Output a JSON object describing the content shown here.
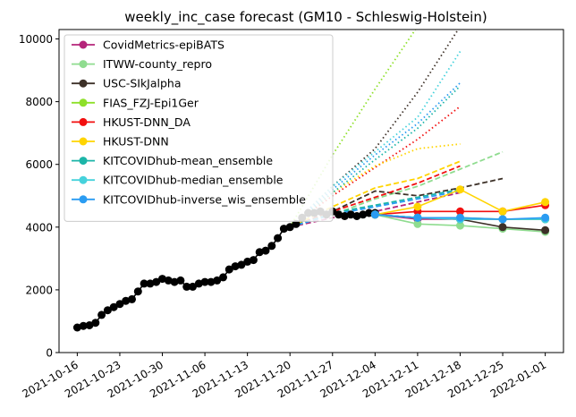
{
  "chart_data": {
    "type": "line",
    "title": "weekly_inc_case forecast (GM10 - Schleswig-Holstein)",
    "xlabel": "",
    "ylabel": "",
    "ylim": [
      0,
      10300
    ],
    "xlim": [
      "2021-10-13",
      "2022-01-04"
    ],
    "grid": false,
    "legend_position": "top-left",
    "yticks": [
      0,
      2000,
      4000,
      6000,
      8000,
      10000
    ],
    "xticks": [
      "2021-10-16",
      "2021-10-23",
      "2021-10-30",
      "2021-11-06",
      "2021-11-13",
      "2021-11-20",
      "2021-11-27",
      "2021-12-04",
      "2021-12-11",
      "2021-12-18",
      "2021-12-25",
      "2022-01-01"
    ],
    "truth": {
      "color": "#000000",
      "x": [
        "2021-10-16",
        "2021-10-17",
        "2021-10-18",
        "2021-10-19",
        "2021-10-20",
        "2021-10-21",
        "2021-10-22",
        "2021-10-23",
        "2021-10-24",
        "2021-10-25",
        "2021-10-26",
        "2021-10-27",
        "2021-10-28",
        "2021-10-29",
        "2021-10-30",
        "2021-10-31",
        "2021-11-01",
        "2021-11-02",
        "2021-11-03",
        "2021-11-04",
        "2021-11-05",
        "2021-11-06",
        "2021-11-07",
        "2021-11-08",
        "2021-11-09",
        "2021-11-10",
        "2021-11-11",
        "2021-11-12",
        "2021-11-13",
        "2021-11-14",
        "2021-11-15",
        "2021-11-16",
        "2021-11-17",
        "2021-11-18",
        "2021-11-19",
        "2021-11-20",
        "2021-11-21",
        "2021-11-22",
        "2021-11-23",
        "2021-11-24",
        "2021-11-25",
        "2021-11-26",
        "2021-11-27",
        "2021-11-28",
        "2021-11-29",
        "2021-11-30",
        "2021-12-01",
        "2021-12-02",
        "2021-12-03",
        "2021-12-04"
      ],
      "values": [
        800,
        850,
        870,
        950,
        1200,
        1350,
        1450,
        1550,
        1650,
        1700,
        1950,
        2200,
        2200,
        2250,
        2350,
        2300,
        2250,
        2300,
        2100,
        2100,
        2200,
        2250,
        2250,
        2300,
        2400,
        2650,
        2750,
        2800,
        2900,
        2950,
        3200,
        3250,
        3400,
        3650,
        3950,
        4000,
        4100,
        4300,
        4450,
        4450,
        4500,
        4400,
        4500,
        4400,
        4350,
        4400,
        4350,
        4400,
        4450,
        4450
      ]
    },
    "forecast_x": [
      "2021-12-04",
      "2021-12-11",
      "2021-12-18",
      "2021-12-25",
      "2022-01-01"
    ],
    "series": [
      {
        "name": "CovidMetrics-epiBATS",
        "color": "#b5247a",
        "values": [
          4400,
          4250,
          4250,
          4250,
          4250
        ]
      },
      {
        "name": "ITWW-county_repro",
        "color": "#8fdc8f",
        "values": [
          4400,
          4100,
          4050,
          3950,
          3850
        ]
      },
      {
        "name": "USC-SIkJalpha",
        "color": "#3d3128",
        "values": [
          4400,
          4300,
          4250,
          4000,
          3900
        ]
      },
      {
        "name": "FIAS_FZJ-Epi1Ger",
        "color": "#8ee02a",
        "values": [
          4400,
          4300,
          4300,
          4250,
          4250
        ]
      },
      {
        "name": "HKUST-DNN_DA",
        "color": "#f20f0f",
        "values": [
          4400,
          4500,
          4500,
          4500,
          4700
        ]
      },
      {
        "name": "HKUST-DNN",
        "color": "#ffd400",
        "values": [
          4400,
          4650,
          5200,
          4500,
          4800
        ]
      },
      {
        "name": "KITCOVIDhub-mean_ensemble",
        "color": "#1cb5a8",
        "values": [
          4400,
          4300,
          4250,
          4250,
          4250
        ]
      },
      {
        "name": "KITCOVIDhub-median_ensemble",
        "color": "#46d2dc",
        "values": [
          4400,
          4300,
          4250,
          4250,
          4250
        ]
      },
      {
        "name": "KITCOVIDhub-inverse_wis_ensemble",
        "color": "#2a9cf2",
        "values": [
          4400,
          4300,
          4300,
          4250,
          4300
        ]
      }
    ],
    "forecast_ranges": [
      {
        "series": "CovidMetrics-epiBATS",
        "color": "#b5247a",
        "style": "dashed",
        "x": [
          "2021-11-20",
          "2021-11-27",
          "2021-12-04",
          "2021-12-11",
          "2021-12-18"
        ],
        "values": [
          4000,
          4300,
          4500,
          4800,
          5100
        ]
      },
      {
        "series": "ITWW-county_repro",
        "color": "#8fdc8f",
        "style": "dashed",
        "x": [
          "2021-11-20",
          "2021-11-27",
          "2021-12-04",
          "2021-12-11",
          "2021-12-18",
          "2021-12-25"
        ],
        "values": [
          4000,
          4400,
          4900,
          5300,
          5850,
          6400
        ]
      },
      {
        "series": "USC-SIkJalpha",
        "color": "#3d3128",
        "style": "dashed",
        "x": [
          "2021-11-20",
          "2021-11-27",
          "2021-12-04",
          "2021-12-11",
          "2021-12-18",
          "2021-12-25"
        ],
        "values": [
          4000,
          4500,
          5150,
          5000,
          5250,
          5550
        ]
      },
      {
        "series": "USC-SIkJalpha",
        "color": "#3d3128",
        "style": "dotted",
        "x": [
          "2021-11-20",
          "2021-11-27",
          "2021-12-04",
          "2021-12-11",
          "2021-12-18"
        ],
        "values": [
          4000,
          5300,
          6500,
          8300,
          10400
        ]
      },
      {
        "series": "FIAS_FZJ-Epi1Ger",
        "color": "#8ee02a",
        "style": "dotted",
        "x": [
          "2021-11-20",
          "2021-11-27",
          "2021-12-04",
          "2021-12-11"
        ],
        "values": [
          4000,
          6300,
          8400,
          10400
        ]
      },
      {
        "series": "HKUST-DNN_DA",
        "color": "#f20f0f",
        "style": "dashed",
        "x": [
          "2021-11-20",
          "2021-11-27",
          "2021-12-04",
          "2021-12-11",
          "2021-12-18"
        ],
        "values": [
          4000,
          4500,
          4950,
          5400,
          5950
        ]
      },
      {
        "series": "HKUST-DNN_DA",
        "color": "#f20f0f",
        "style": "dotted",
        "x": [
          "2021-11-20",
          "2021-11-27",
          "2021-12-04",
          "2021-12-11",
          "2021-12-18"
        ],
        "values": [
          4000,
          5000,
          5900,
          6800,
          7850
        ]
      },
      {
        "series": "HKUST-DNN",
        "color": "#ffd400",
        "style": "dashed",
        "x": [
          "2021-11-20",
          "2021-11-27",
          "2021-12-04",
          "2021-12-11",
          "2021-12-18"
        ],
        "values": [
          4000,
          4650,
          5250,
          5550,
          6100
        ]
      },
      {
        "series": "HKUST-DNN",
        "color": "#ffd400",
        "style": "dotted",
        "x": [
          "2021-11-20",
          "2021-11-27",
          "2021-12-04",
          "2021-12-11",
          "2021-12-18"
        ],
        "values": [
          4000,
          5100,
          5950,
          6500,
          6650
        ]
      },
      {
        "series": "KITCOVIDhub-mean_ensemble",
        "color": "#1cb5a8",
        "style": "dashed",
        "x": [
          "2021-11-20",
          "2021-11-27",
          "2021-12-04",
          "2021-12-11",
          "2021-12-18"
        ],
        "values": [
          4000,
          4450,
          4700,
          4950,
          5200
        ]
      },
      {
        "series": "KITCOVIDhub-median_ensemble",
        "color": "#46d2dc",
        "style": "dotted",
        "x": [
          "2021-11-20",
          "2021-11-27",
          "2021-12-04",
          "2021-12-11",
          "2021-12-18"
        ],
        "values": [
          4000,
          5300,
          6400,
          7500,
          9600
        ]
      },
      {
        "series": "KITCOVIDhub-mean_ensemble",
        "color": "#1cb5a8",
        "style": "dotted",
        "x": [
          "2021-11-20",
          "2021-11-27",
          "2021-12-04",
          "2021-12-11",
          "2021-12-18"
        ],
        "values": [
          4000,
          5100,
          6150,
          7150,
          8500
        ]
      },
      {
        "series": "KITCOVIDhub-inverse_wis_ensemble",
        "color": "#2a9cf2",
        "style": "dashed",
        "x": [
          "2021-11-20",
          "2021-11-27",
          "2021-12-04",
          "2021-12-11",
          "2021-12-18"
        ],
        "values": [
          4000,
          4400,
          4650,
          4900,
          5150
        ]
      },
      {
        "series": "KITCOVIDhub-inverse_wis_ensemble",
        "color": "#2a9cf2",
        "style": "dotted",
        "x": [
          "2021-11-20",
          "2021-11-27",
          "2021-12-04",
          "2021-12-11",
          "2021-12-18"
        ],
        "values": [
          4000,
          5200,
          6300,
          7300,
          8600
        ]
      }
    ]
  }
}
